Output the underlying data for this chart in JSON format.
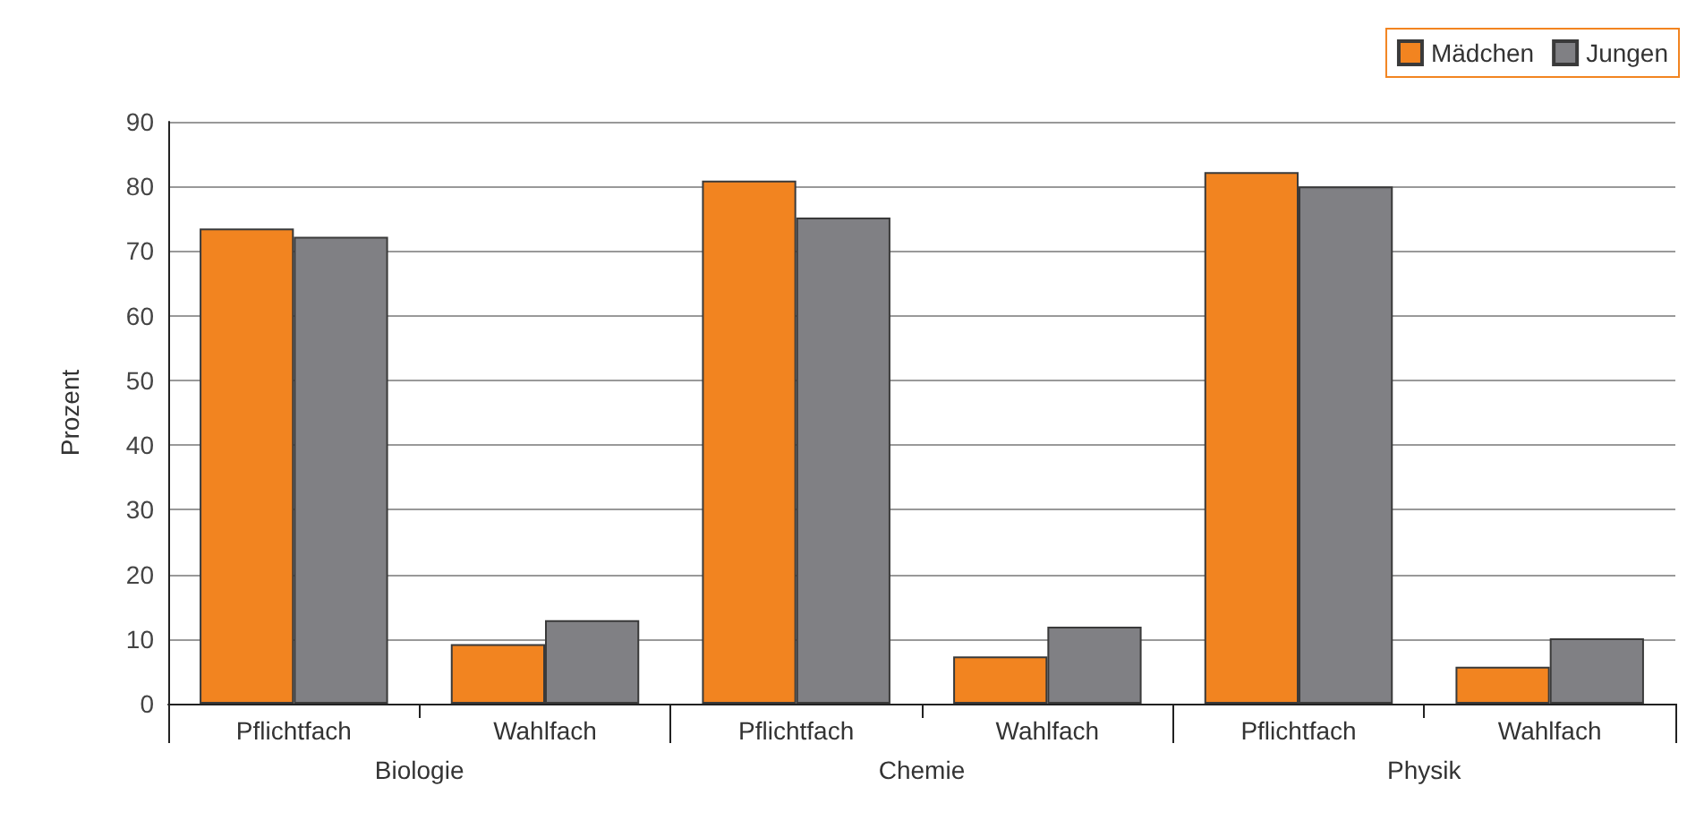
{
  "chart_data": {
    "type": "bar",
    "ylabel": "Prozent",
    "categories": [
      "Pflichtfach",
      "Wahlfach",
      "Pflichtfach",
      "Wahlfach",
      "Pflichtfach",
      "Wahlfach"
    ],
    "series": [
      {
        "name": "Mädchen",
        "color": "#f28420",
        "values": [
          73.5,
          9.2,
          80.9,
          7.3,
          82.2,
          5.7
        ]
      },
      {
        "name": "Jungen",
        "color": "#808084",
        "values": [
          72.2,
          12.9,
          75.2,
          11.9,
          80.0,
          10.1
        ]
      }
    ],
    "annotations": [
      "Biologie",
      "Chemie",
      "Physik"
    ],
    "ylim": [
      0,
      90
    ],
    "yticks": [
      0,
      10,
      20,
      30,
      40,
      50,
      60,
      70,
      80,
      90
    ],
    "grid": "y",
    "legend": "top right"
  }
}
